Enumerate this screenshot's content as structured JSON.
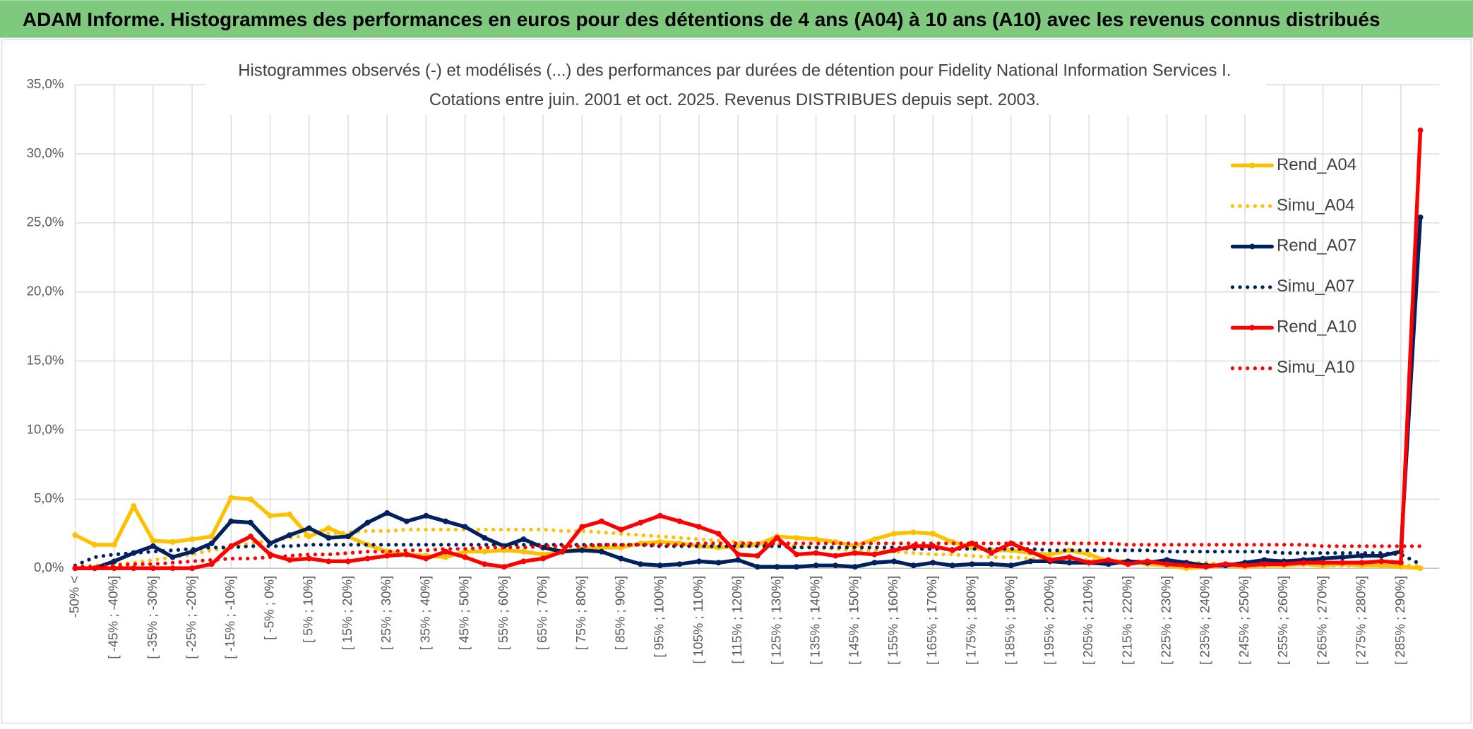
{
  "header": "ADAM Informe. Histogrammes des performances en euros pour des détentions de 4 ans (A04) à 10 ans (A10) avec les revenus connus distribués",
  "chart_data": {
    "type": "line",
    "title": "Histogrammes observés (-) et modélisés (...) des performances par durées de détention pour Fidelity National Information Services I.",
    "subtitle": "Cotations entre juin. 2001 et oct. 2025. Revenus DISTRIBUES depuis sept. 2003.",
    "categories": [
      "-50% <",
      null,
      "[ -45% ; -40%]",
      null,
      "[ -35% ; -30%]",
      null,
      "[ -25% ; -20%]",
      null,
      "[ -15% ; -10%]",
      null,
      "[ -5% ; 0%]",
      null,
      "[ 5% ; 10%]",
      null,
      "[ 15% ; 20%]",
      null,
      "[ 25% ; 30%]",
      null,
      "[ 35% ; 40%]",
      null,
      "[ 45% ; 50%]",
      null,
      "[ 55% ; 60%]",
      null,
      "[ 65% ; 70%]",
      null,
      "[ 75% ; 80%]",
      null,
      "[ 85% ; 90%]",
      null,
      "[ 95% ; 100%]",
      null,
      "[ 105% ; 110%]",
      null,
      "[ 115% ; 120%]",
      null,
      "[ 125% ; 130%]",
      null,
      "[ 135% ; 140%]",
      null,
      "[ 145% ; 150%]",
      null,
      "[ 155% ; 160%]",
      null,
      "[ 165% ; 170%]",
      null,
      "[ 175% ; 180%]",
      null,
      "[ 185% ; 190%]",
      null,
      "[ 195% ; 200%]",
      null,
      "[ 205% ; 210%]",
      null,
      "[ 215% ; 220%]",
      null,
      "[ 225% ; 230%]",
      null,
      "[ 235% ; 240%]",
      null,
      "[ 245% ; 250%]",
      null,
      "[ 255% ; 260%]",
      null,
      "[ 265% ; 270%]",
      null,
      "[ 275% ; 280%]",
      null,
      "[ 285% ; 290%]",
      null
    ],
    "series": [
      {
        "name": "Rend_A04",
        "color": "#FFC000",
        "line_style": "solid",
        "markers": true,
        "values": [
          2.4,
          1.7,
          1.7,
          4.5,
          2.0,
          1.9,
          2.1,
          2.3,
          5.1,
          5.0,
          3.8,
          3.9,
          2.3,
          2.9,
          2.3,
          1.7,
          1.2,
          1.0,
          0.9,
          0.8,
          1.2,
          1.2,
          1.3,
          1.2,
          1.0,
          1.2,
          1.4,
          1.5,
          1.5,
          1.8,
          1.9,
          1.8,
          1.6,
          1.5,
          1.6,
          1.7,
          2.3,
          2.2,
          2.1,
          1.9,
          1.6,
          2.1,
          2.5,
          2.6,
          2.5,
          1.9,
          1.5,
          1.3,
          1.3,
          1.1,
          1.0,
          1.3,
          1.0,
          0.5,
          0.5,
          0.3,
          0.2,
          0.0,
          0.1,
          0.2,
          0.1,
          0.2,
          0.2,
          0.3,
          0.2,
          0.3,
          0.2,
          0.2,
          0.1,
          0.0
        ]
      },
      {
        "name": "Simu_A04",
        "color": "#FFC000",
        "line_style": "dotted",
        "markers": false,
        "values": [
          0.1,
          0.2,
          0.3,
          0.4,
          0.6,
          0.8,
          1.0,
          1.3,
          1.5,
          1.8,
          2.0,
          2.2,
          2.4,
          2.5,
          2.6,
          2.7,
          2.7,
          2.8,
          2.8,
          2.8,
          2.8,
          2.8,
          2.8,
          2.8,
          2.8,
          2.7,
          2.7,
          2.6,
          2.5,
          2.4,
          2.3,
          2.2,
          2.1,
          2.0,
          1.9,
          1.8,
          1.7,
          1.6,
          1.5,
          1.4,
          1.3,
          1.3,
          1.2,
          1.1,
          1.0,
          1.0,
          0.9,
          0.8,
          0.8,
          0.7,
          0.7,
          0.6,
          0.6,
          0.5,
          0.5,
          0.5,
          0.4,
          0.4,
          0.4,
          0.3,
          0.3,
          0.3,
          0.3,
          0.3,
          0.2,
          0.2,
          0.2,
          0.2,
          0.2,
          0.2
        ]
      },
      {
        "name": "Rend_A07",
        "color": "#002060",
        "line_style": "solid",
        "markers": true,
        "values": [
          0.0,
          0.0,
          0.5,
          1.1,
          1.6,
          0.8,
          1.2,
          1.8,
          3.4,
          3.3,
          1.8,
          2.4,
          2.9,
          2.2,
          2.3,
          3.3,
          4.0,
          3.4,
          3.8,
          3.4,
          3.0,
          2.2,
          1.6,
          2.1,
          1.5,
          1.2,
          1.3,
          1.2,
          0.7,
          0.3,
          0.2,
          0.3,
          0.5,
          0.4,
          0.6,
          0.1,
          0.1,
          0.1,
          0.2,
          0.2,
          0.1,
          0.4,
          0.5,
          0.2,
          0.4,
          0.2,
          0.3,
          0.3,
          0.2,
          0.5,
          0.5,
          0.4,
          0.4,
          0.3,
          0.5,
          0.4,
          0.6,
          0.4,
          0.2,
          0.2,
          0.4,
          0.6,
          0.5,
          0.6,
          0.7,
          0.8,
          0.9,
          0.9,
          1.2,
          25.4
        ]
      },
      {
        "name": "Simu_A07",
        "color": "#002060",
        "line_style": "dotted",
        "markers": false,
        "values": [
          0.2,
          0.8,
          1.0,
          1.1,
          1.2,
          1.3,
          1.4,
          1.5,
          1.5,
          1.6,
          1.6,
          1.6,
          1.7,
          1.7,
          1.7,
          1.7,
          1.7,
          1.7,
          1.7,
          1.7,
          1.7,
          1.7,
          1.7,
          1.7,
          1.7,
          1.7,
          1.7,
          1.7,
          1.7,
          1.7,
          1.6,
          1.6,
          1.6,
          1.6,
          1.6,
          1.6,
          1.6,
          1.5,
          1.5,
          1.5,
          1.5,
          1.5,
          1.5,
          1.4,
          1.4,
          1.4,
          1.4,
          1.4,
          1.4,
          1.4,
          1.3,
          1.3,
          1.3,
          1.3,
          1.3,
          1.3,
          1.2,
          1.2,
          1.2,
          1.2,
          1.2,
          1.2,
          1.1,
          1.1,
          1.1,
          1.1,
          1.1,
          1.1,
          1.0,
          0.3
        ]
      },
      {
        "name": "Rend_A10",
        "color": "#FF0000",
        "line_style": "solid",
        "markers": true,
        "values": [
          0.0,
          0.0,
          0.0,
          0.0,
          0.0,
          0.0,
          0.0,
          0.3,
          1.6,
          2.3,
          1.0,
          0.6,
          0.7,
          0.5,
          0.5,
          0.7,
          0.9,
          1.0,
          0.7,
          1.2,
          0.8,
          0.3,
          0.1,
          0.5,
          0.7,
          1.2,
          3.0,
          3.4,
          2.8,
          3.3,
          3.8,
          3.4,
          3.0,
          2.5,
          1.0,
          0.9,
          2.2,
          1.0,
          1.1,
          0.9,
          1.1,
          1.0,
          1.3,
          1.6,
          1.6,
          1.3,
          1.8,
          1.1,
          1.8,
          1.2,
          0.6,
          0.8,
          0.4,
          0.6,
          0.3,
          0.5,
          0.3,
          0.2,
          0.1,
          0.3,
          0.2,
          0.3,
          0.3,
          0.4,
          0.4,
          0.4,
          0.4,
          0.5,
          0.4,
          31.7
        ]
      },
      {
        "name": "Simu_A10",
        "color": "#FF0000",
        "line_style": "dotted",
        "markers": false,
        "values": [
          0.1,
          0.1,
          0.2,
          0.3,
          0.3,
          0.4,
          0.5,
          0.6,
          0.7,
          0.7,
          0.8,
          0.9,
          1.0,
          1.0,
          1.1,
          1.2,
          1.2,
          1.3,
          1.3,
          1.4,
          1.4,
          1.5,
          1.5,
          1.5,
          1.6,
          1.6,
          1.6,
          1.7,
          1.7,
          1.7,
          1.7,
          1.7,
          1.8,
          1.8,
          1.8,
          1.8,
          1.8,
          1.8,
          1.8,
          1.8,
          1.8,
          1.8,
          1.8,
          1.8,
          1.8,
          1.8,
          1.8,
          1.8,
          1.8,
          1.8,
          1.8,
          1.8,
          1.8,
          1.8,
          1.7,
          1.7,
          1.7,
          1.7,
          1.7,
          1.7,
          1.7,
          1.7,
          1.7,
          1.7,
          1.6,
          1.6,
          1.6,
          1.6,
          1.6,
          1.6
        ]
      }
    ],
    "ylim": [
      0,
      35
    ],
    "yticks": [
      {
        "value": 0,
        "label": "0,0%"
      },
      {
        "value": 5,
        "label": "5,0%"
      },
      {
        "value": 10,
        "label": "10,0%"
      },
      {
        "value": 15,
        "label": "15,0%"
      },
      {
        "value": 20,
        "label": "20,0%"
      },
      {
        "value": 25,
        "label": "25,0%"
      },
      {
        "value": 30,
        "label": "30,0%"
      },
      {
        "value": 35,
        "label": "35,0%"
      }
    ],
    "grid": true,
    "legend": "right"
  }
}
